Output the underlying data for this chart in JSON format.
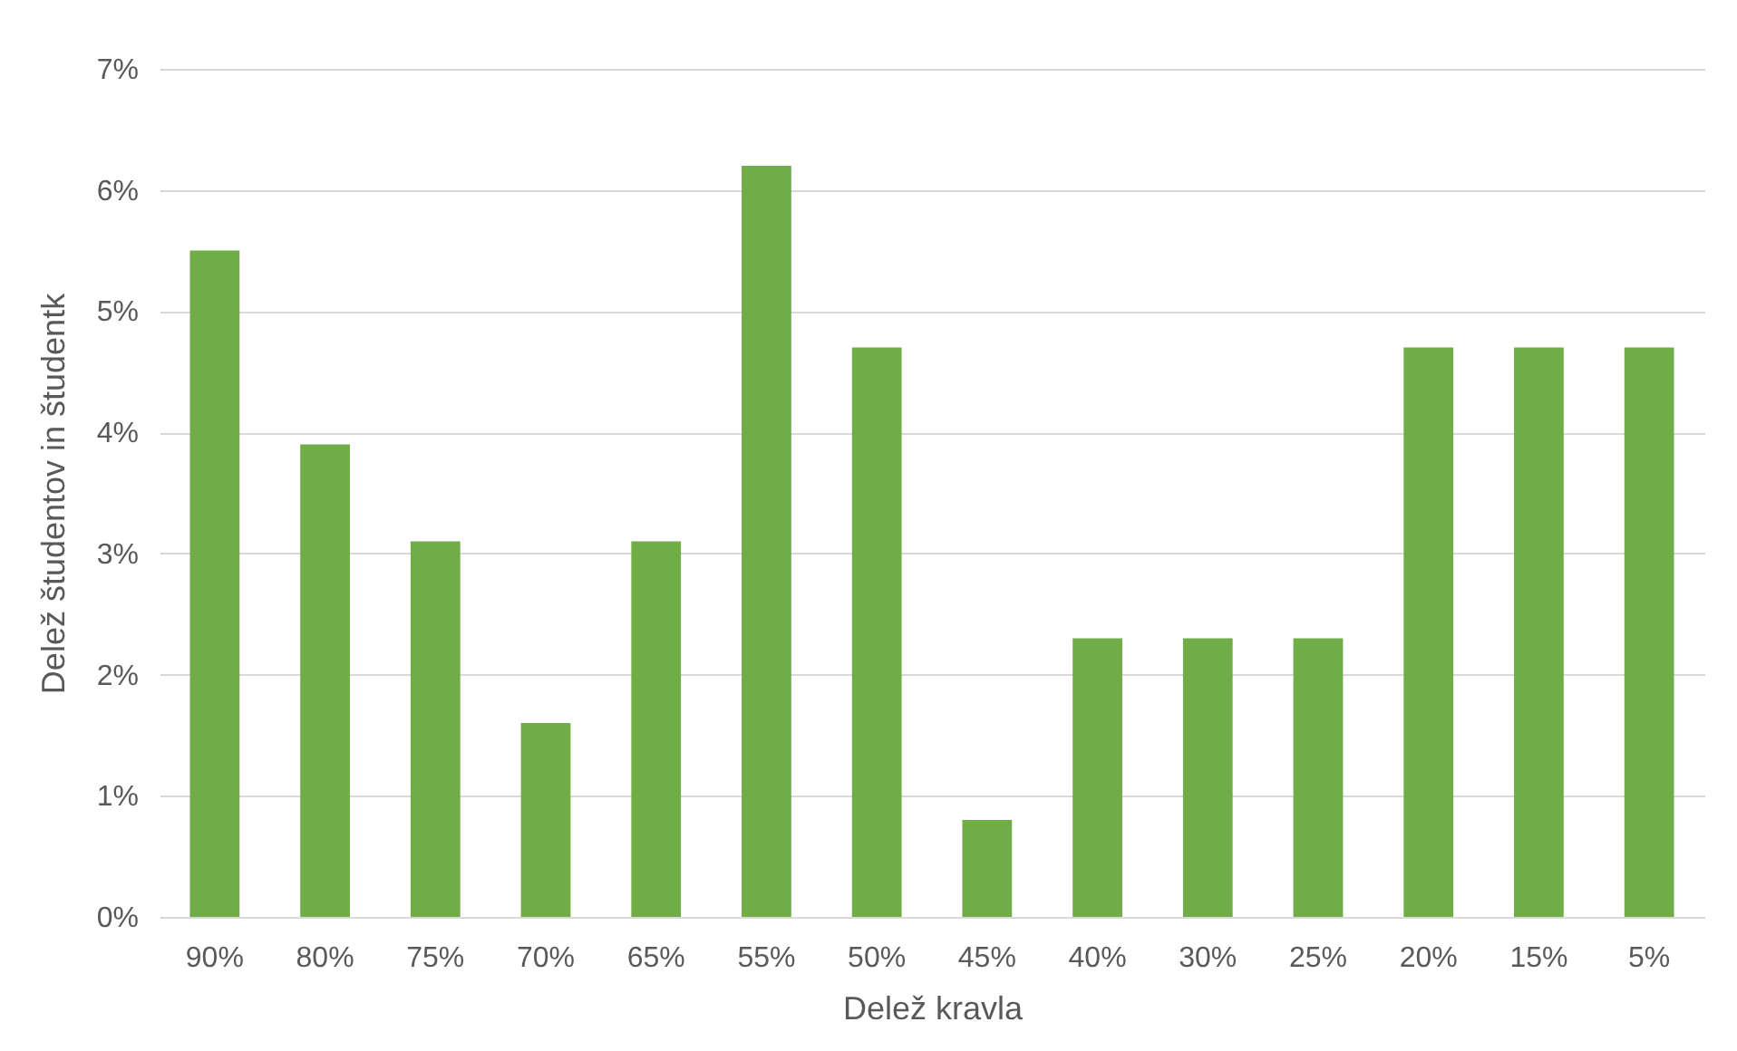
{
  "chart_data": {
    "type": "bar",
    "xlabel": "Delež kravla",
    "ylabel": "Delež študentov in študentk",
    "categories": [
      "90%",
      "80%",
      "75%",
      "70%",
      "65%",
      "55%",
      "50%",
      "45%",
      "40%",
      "30%",
      "25%",
      "20%",
      "15%",
      "5%"
    ],
    "values": [
      5.5,
      3.9,
      3.1,
      1.6,
      3.1,
      6.2,
      4.7,
      0.8,
      2.3,
      2.3,
      2.3,
      4.7,
      4.7,
      4.7
    ],
    "color": "#70ad47",
    "ylim": [
      0,
      7
    ],
    "yticks": [
      {
        "value": 0,
        "label": "0%"
      },
      {
        "value": 1,
        "label": "1%"
      },
      {
        "value": 2,
        "label": "2%"
      },
      {
        "value": 3,
        "label": "3%"
      },
      {
        "value": 4,
        "label": "4%"
      },
      {
        "value": 5,
        "label": "5%"
      },
      {
        "value": 6,
        "label": "6%"
      },
      {
        "value": 7,
        "label": "7%"
      }
    ],
    "grid": "y"
  }
}
